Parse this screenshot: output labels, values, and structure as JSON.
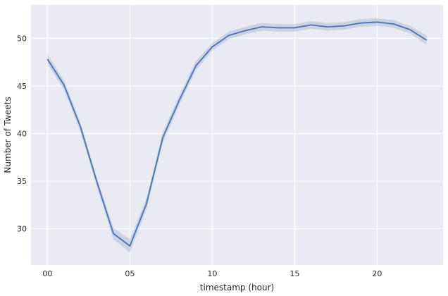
{
  "chart_data": {
    "type": "line",
    "title": "",
    "xlabel": "timestamp (hour)",
    "ylabel": "Number of Tweets",
    "x": [
      0,
      1,
      2,
      3,
      4,
      5,
      6,
      7,
      8,
      9,
      10,
      11,
      12,
      13,
      14,
      15,
      16,
      17,
      18,
      19,
      20,
      21,
      22,
      23
    ],
    "xlim": [
      -1,
      24
    ],
    "ylim": [
      26.2,
      53.5
    ],
    "x_ticks": [
      0,
      5,
      10,
      15,
      20
    ],
    "x_tick_labels": [
      "00",
      "05",
      "10",
      "15",
      "20"
    ],
    "y_ticks": [
      30,
      35,
      40,
      45,
      50
    ],
    "y_tick_labels": [
      "30",
      "35",
      "40",
      "45",
      "50"
    ],
    "grid": true,
    "series": [
      {
        "values": [
          47.8,
          45.1,
          40.7,
          34.9,
          29.5,
          28.2,
          32.6,
          39.6,
          43.5,
          47.1,
          49.1,
          50.3,
          50.8,
          51.2,
          51.1,
          51.1,
          51.4,
          51.2,
          51.3,
          51.6,
          51.7,
          51.5,
          50.9,
          49.8
        ],
        "ci_lower": [
          47.3,
          44.6,
          40.2,
          34.4,
          28.9,
          27.5,
          32.0,
          39.0,
          43.0,
          46.6,
          48.7,
          49.9,
          50.4,
          50.8,
          50.7,
          50.7,
          51.0,
          50.8,
          50.9,
          51.2,
          51.3,
          51.1,
          50.5,
          49.3
        ],
        "ci_upper": [
          48.3,
          45.6,
          41.2,
          35.4,
          30.1,
          28.9,
          33.2,
          40.2,
          44.0,
          47.6,
          49.5,
          50.7,
          51.2,
          51.6,
          51.5,
          51.5,
          51.8,
          51.6,
          51.7,
          52.0,
          52.1,
          51.9,
          51.3,
          50.3
        ]
      }
    ],
    "colors": {
      "background": "#eaeaf2",
      "grid": "#ffffff",
      "line": "#4c72b0",
      "band": "#4c72b0"
    }
  }
}
